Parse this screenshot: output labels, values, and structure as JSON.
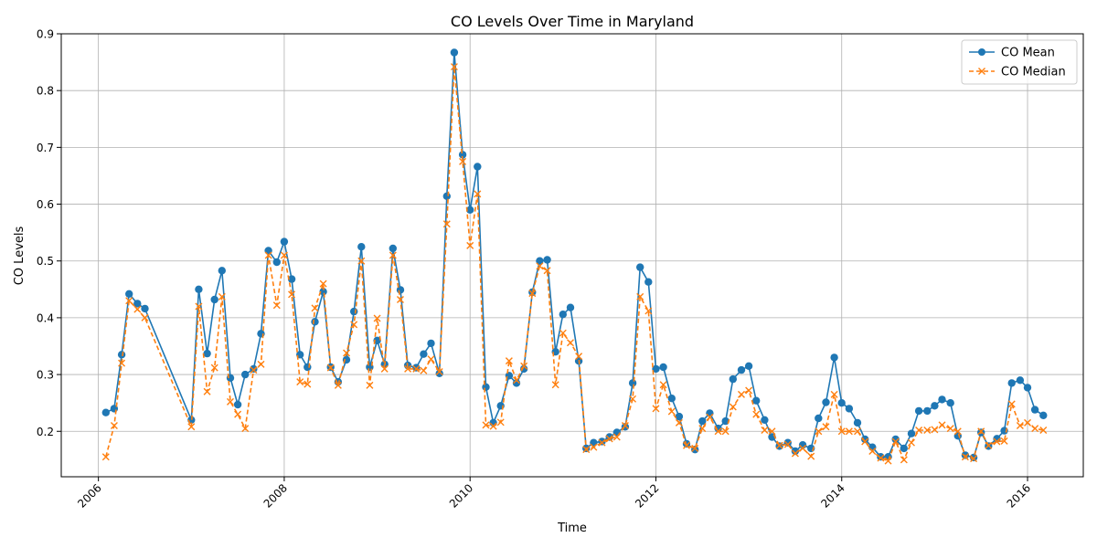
{
  "chart_data": {
    "type": "line",
    "title": "CO Levels Over Time in Maryland",
    "xlabel": "Time",
    "ylabel": "CO Levels",
    "xlim": [
      2005.6,
      2016.6
    ],
    "ylim": [
      0.12,
      0.9
    ],
    "x_ticks": [
      {
        "value": 2006,
        "label": "2006"
      },
      {
        "value": 2008,
        "label": "2008"
      },
      {
        "value": 2010,
        "label": "2010"
      },
      {
        "value": 2012,
        "label": "2012"
      },
      {
        "value": 2014,
        "label": "2014"
      },
      {
        "value": 2016,
        "label": "2016"
      }
    ],
    "y_ticks": [
      {
        "value": 0.2,
        "label": "0.2"
      },
      {
        "value": 0.3,
        "label": "0.3"
      },
      {
        "value": 0.4,
        "label": "0.4"
      },
      {
        "value": 0.5,
        "label": "0.5"
      },
      {
        "value": 0.6,
        "label": "0.6"
      },
      {
        "value": 0.7,
        "label": "0.7"
      },
      {
        "value": 0.8,
        "label": "0.8"
      },
      {
        "value": 0.9,
        "label": "0.9"
      }
    ],
    "grid": true,
    "legend_position": "top-right",
    "x": [
      2006.08,
      2006.17,
      2006.25,
      2006.33,
      2006.42,
      2006.5,
      2007.0,
      2007.08,
      2007.17,
      2007.25,
      2007.33,
      2007.42,
      2007.5,
      2007.58,
      2007.67,
      2007.75,
      2007.83,
      2007.92,
      2008.0,
      2008.08,
      2008.17,
      2008.25,
      2008.33,
      2008.42,
      2008.5,
      2008.58,
      2008.67,
      2008.75,
      2008.83,
      2008.92,
      2009.0,
      2009.08,
      2009.17,
      2009.25,
      2009.33,
      2009.42,
      2009.5,
      2009.58,
      2009.67,
      2009.75,
      2009.83,
      2009.92,
      2010.0,
      2010.08,
      2010.17,
      2010.25,
      2010.33,
      2010.42,
      2010.5,
      2010.58,
      2010.67,
      2010.75,
      2010.83,
      2010.92,
      2011.0,
      2011.08,
      2011.17,
      2011.25,
      2011.33,
      2011.42,
      2011.5,
      2011.58,
      2011.67,
      2011.75,
      2011.83,
      2011.92,
      2012.0,
      2012.08,
      2012.17,
      2012.25,
      2012.33,
      2012.42,
      2012.5,
      2012.58,
      2012.67,
      2012.75,
      2012.83,
      2012.92,
      2013.0,
      2013.08,
      2013.17,
      2013.25,
      2013.33,
      2013.42,
      2013.5,
      2013.58,
      2013.67,
      2013.75,
      2013.83,
      2013.92,
      2014.0,
      2014.08,
      2014.17,
      2014.25,
      2014.33,
      2014.42,
      2014.5,
      2014.58,
      2014.67,
      2014.75,
      2014.83,
      2014.92,
      2015.0,
      2015.08,
      2015.17,
      2015.25,
      2015.33,
      2015.42,
      2015.5,
      2015.58,
      2015.67,
      2015.75,
      2015.83,
      2015.92,
      2016.0,
      2016.08,
      2016.17
    ],
    "series": [
      {
        "name": "CO Mean",
        "color": "#1f77b4",
        "style": "solid",
        "marker": "circle",
        "values": [
          0.233,
          0.24,
          0.335,
          0.442,
          0.425,
          0.416,
          0.22,
          0.45,
          0.337,
          0.432,
          0.483,
          0.294,
          0.247,
          0.3,
          0.31,
          0.372,
          0.518,
          0.498,
          0.534,
          0.468,
          0.335,
          0.313,
          0.393,
          0.446,
          0.313,
          0.287,
          0.326,
          0.411,
          0.525,
          0.313,
          0.36,
          0.318,
          0.522,
          0.449,
          0.316,
          0.312,
          0.336,
          0.355,
          0.302,
          0.614,
          0.867,
          0.687,
          0.59,
          0.666,
          0.278,
          0.215,
          0.245,
          0.298,
          0.285,
          0.31,
          0.445,
          0.5,
          0.502,
          0.34,
          0.406,
          0.418,
          0.324,
          0.17,
          0.18,
          0.182,
          0.19,
          0.198,
          0.208,
          0.285,
          0.489,
          0.463,
          0.31,
          0.313,
          0.258,
          0.226,
          0.178,
          0.168,
          0.218,
          0.232,
          0.205,
          0.218,
          0.292,
          0.308,
          0.315,
          0.254,
          0.22,
          0.19,
          0.174,
          0.18,
          0.165,
          0.176,
          0.17,
          0.223,
          0.251,
          0.33,
          0.25,
          0.24,
          0.215,
          0.186,
          0.172,
          0.155,
          0.155,
          0.186,
          0.17,
          0.196,
          0.236,
          0.236,
          0.245,
          0.256,
          0.25,
          0.192,
          0.158,
          0.154,
          0.198,
          0.174,
          0.187,
          0.201,
          0.285,
          0.29,
          0.277,
          0.238,
          0.228
        ]
      },
      {
        "name": "CO Median",
        "color": "#ff7f0e",
        "style": "dashed",
        "marker": "x",
        "values": [
          0.155,
          0.21,
          0.32,
          0.43,
          0.415,
          0.4,
          0.208,
          0.42,
          0.27,
          0.312,
          0.437,
          0.252,
          0.23,
          0.205,
          0.308,
          0.318,
          0.51,
          0.422,
          0.51,
          0.441,
          0.287,
          0.283,
          0.417,
          0.46,
          0.312,
          0.281,
          0.338,
          0.388,
          0.5,
          0.281,
          0.399,
          0.31,
          0.51,
          0.432,
          0.31,
          0.31,
          0.307,
          0.327,
          0.305,
          0.565,
          0.842,
          0.675,
          0.527,
          0.618,
          0.211,
          0.209,
          0.216,
          0.324,
          0.29,
          0.315,
          0.443,
          0.491,
          0.483,
          0.282,
          0.373,
          0.356,
          0.332,
          0.168,
          0.172,
          0.18,
          0.187,
          0.19,
          0.21,
          0.257,
          0.437,
          0.412,
          0.24,
          0.282,
          0.235,
          0.215,
          0.175,
          0.17,
          0.205,
          0.225,
          0.2,
          0.2,
          0.243,
          0.265,
          0.272,
          0.23,
          0.202,
          0.2,
          0.175,
          0.177,
          0.161,
          0.17,
          0.156,
          0.2,
          0.208,
          0.265,
          0.2,
          0.2,
          0.2,
          0.182,
          0.165,
          0.153,
          0.148,
          0.182,
          0.15,
          0.18,
          0.202,
          0.202,
          0.203,
          0.211,
          0.205,
          0.2,
          0.155,
          0.152,
          0.2,
          0.175,
          0.182,
          0.183,
          0.248,
          0.21,
          0.215,
          0.205,
          0.202
        ]
      }
    ]
  }
}
